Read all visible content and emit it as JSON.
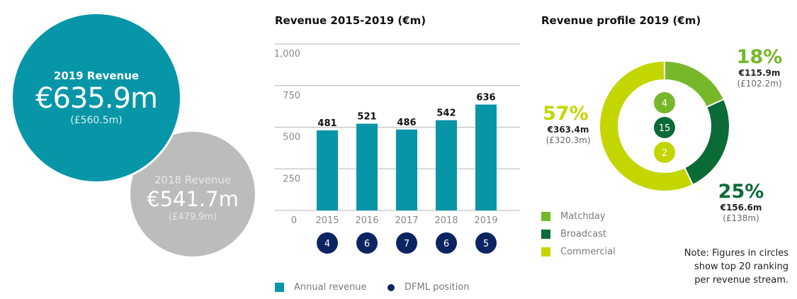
{
  "bubbles": {
    "current": {
      "label": "2019 Revenue",
      "eur": "€635.9m",
      "gbp": "(£560.5m)",
      "color": "#0796a8"
    },
    "previous": {
      "label": "2018 Revenue",
      "eur": "€541.7m",
      "gbp": "(£479.9m)",
      "color": "#bcbcbc"
    }
  },
  "chart_data": [
    {
      "type": "bar",
      "title": "Revenue 2015-2019 (€m)",
      "categories": [
        "2015",
        "2016",
        "2017",
        "2018",
        "2019"
      ],
      "values": [
        481,
        521,
        486,
        542,
        636
      ],
      "value_labels": [
        "481",
        "521",
        "486",
        "542",
        "636"
      ],
      "dfml_positions": [
        "4",
        "6",
        "7",
        "6",
        "5"
      ],
      "ylim": [
        0,
        1000
      ],
      "yticks": [
        0,
        250,
        500,
        750,
        1000
      ],
      "ytick_labels": [
        "0",
        "250",
        "500",
        "750",
        "1,000"
      ],
      "grid": true,
      "xlabel": "",
      "ylabel": "",
      "legend": [
        {
          "label": "Annual revenue",
          "color": "#0796a8",
          "shape": "square"
        },
        {
          "label": "DFML position",
          "color": "#0c2461",
          "shape": "circle"
        }
      ],
      "legend_position": "bottom-left",
      "colors": {
        "bar": "#0796a8",
        "position": "#0c2461",
        "grid": "#b5b5b5"
      }
    },
    {
      "type": "pie",
      "subtype": "donut",
      "title": "Revenue profile 2019 (€m)",
      "categories": [
        "Matchday",
        "Broadcast",
        "Commercial"
      ],
      "values": [
        115.9,
        156.6,
        363.4
      ],
      "percent_labels": [
        "18%",
        "25%",
        "57%"
      ],
      "eur_labels": [
        "€115.9m",
        "€156.6m",
        "€363.4m"
      ],
      "gbp_labels": [
        "(£102.2m)",
        "(£138m)",
        "(£320.3m)"
      ],
      "rankings": [
        "4",
        "15",
        "2"
      ],
      "colors": [
        "#76b82a",
        "#0b6b37",
        "#c4d600"
      ],
      "legend_position": "bottom-left"
    }
  ],
  "note": [
    "Note: Figures in circles",
    "show top 20 ranking",
    "per revenue stream."
  ]
}
